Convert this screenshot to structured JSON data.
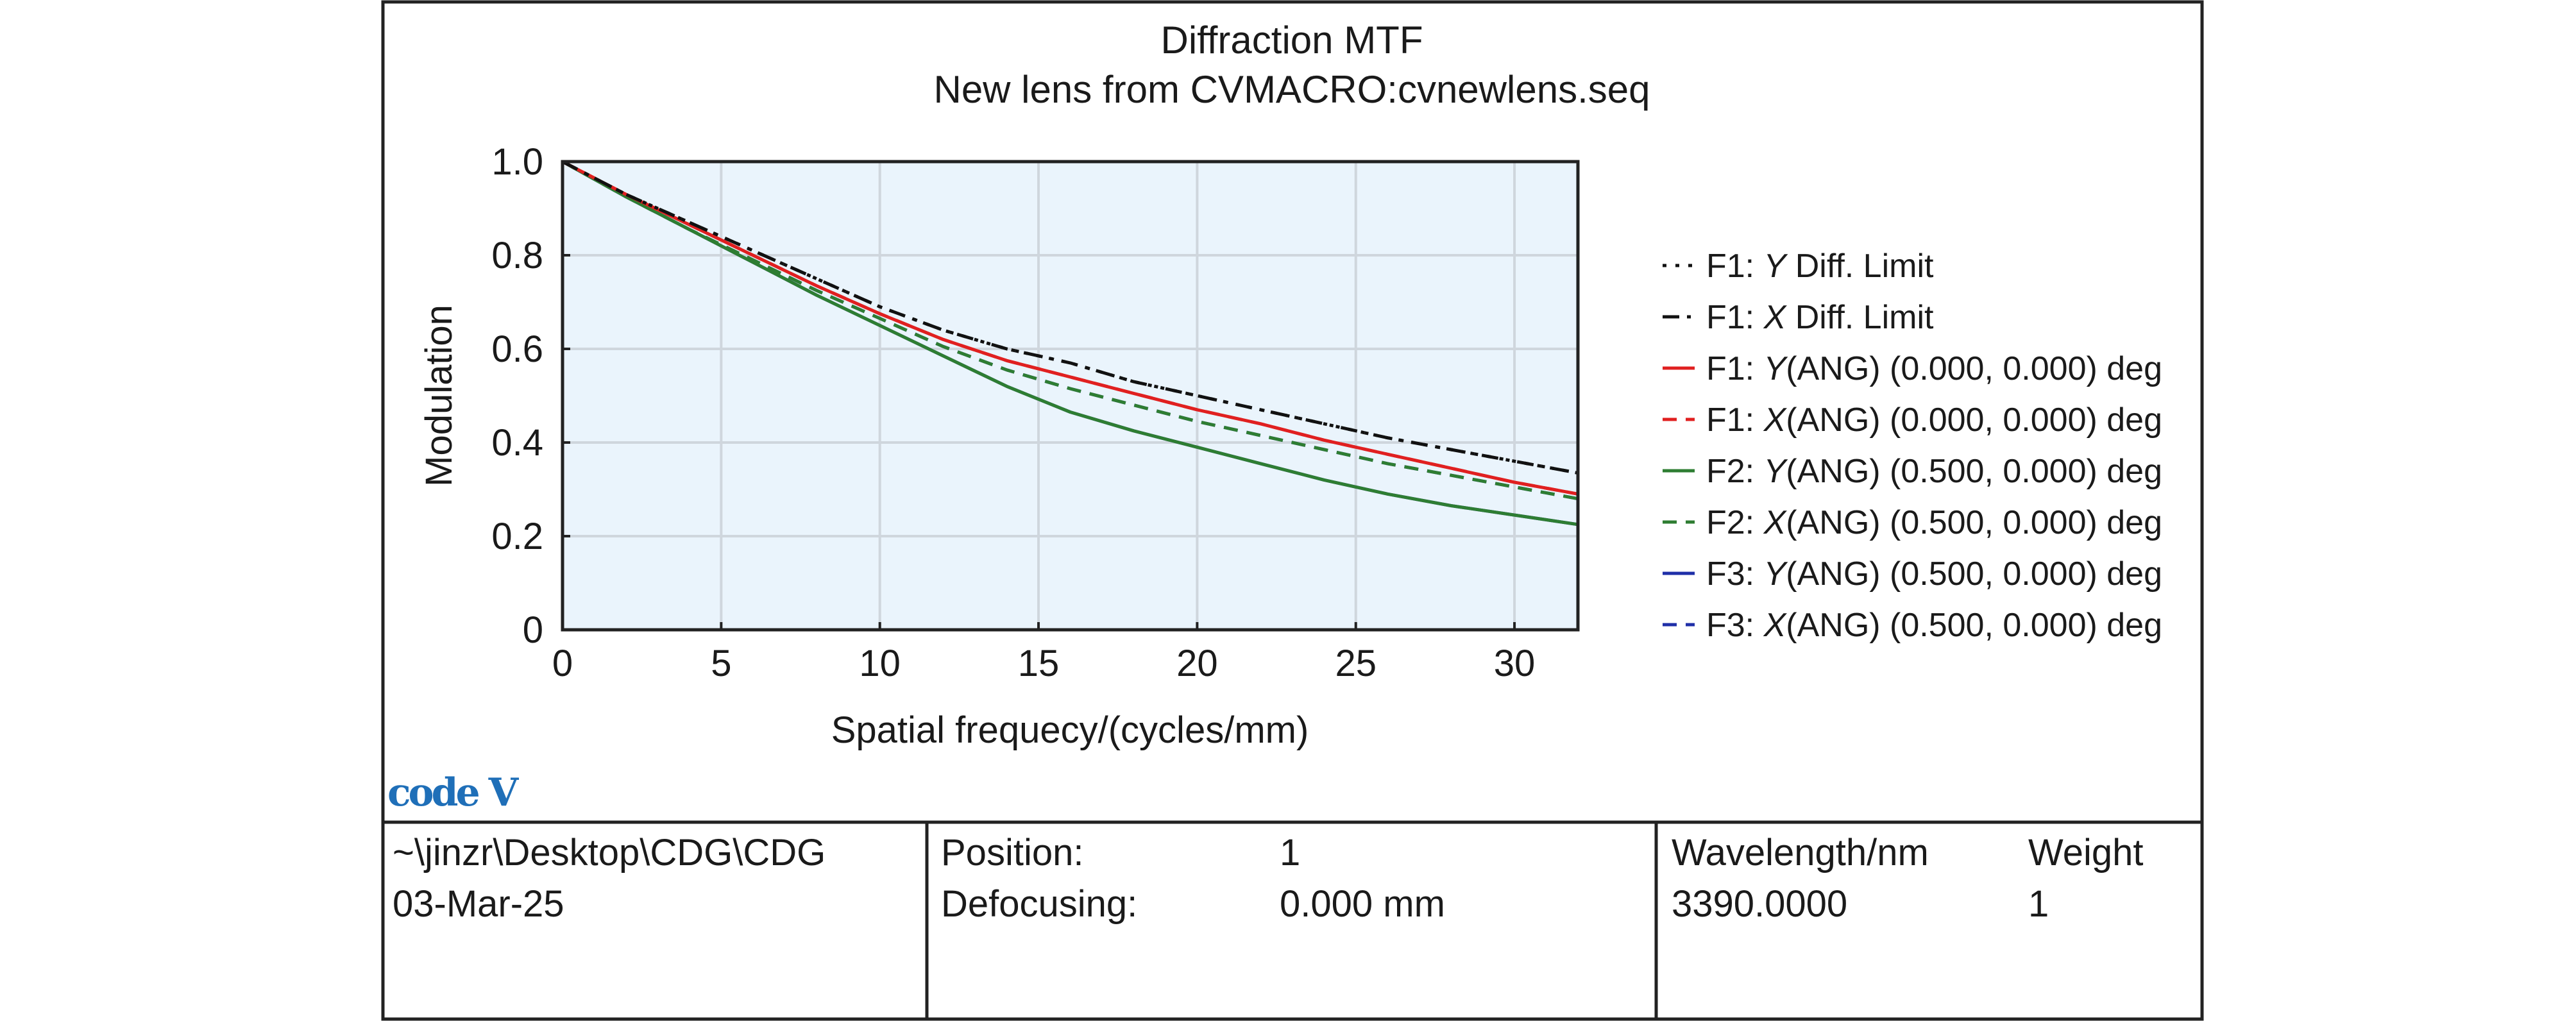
{
  "chart_data": {
    "type": "line",
    "title": "Diffraction MTF",
    "subtitle": "New lens from CVMACRO:cvnewlens.seq",
    "xlabel": "Spatial frequecy/(cycles/mm)",
    "ylabel": "Modulation",
    "xlim": [
      0,
      32
    ],
    "ylim": [
      0,
      1.0
    ],
    "x_ticks": [
      0,
      5,
      10,
      15,
      20,
      25,
      30
    ],
    "x_tick_labels": [
      "0",
      "5",
      "10",
      "15",
      "20",
      "25",
      "30"
    ],
    "y_ticks": [
      0,
      0.2,
      0.4,
      0.6,
      0.8,
      1.0
    ],
    "y_tick_labels": [
      "0",
      "0.2",
      "0.4",
      "0.6",
      "0.8",
      "1.0"
    ],
    "grid": true,
    "legend_position": "right",
    "x": [
      0,
      2,
      4,
      6,
      8,
      10,
      12,
      14,
      16,
      18,
      20,
      22,
      24,
      26,
      28,
      30,
      32
    ],
    "series": [
      {
        "name_prefix": "F1: ",
        "axis": "Y",
        "name_suffix": " Diff. Limit",
        "color": "#111111",
        "dash": "dot",
        "values": [
          1.0,
          0.93,
          0.87,
          0.81,
          0.75,
          0.69,
          0.64,
          0.6,
          0.57,
          0.53,
          0.5,
          0.47,
          0.44,
          0.41,
          0.385,
          0.36,
          0.335
        ]
      },
      {
        "name_prefix": "F1: ",
        "axis": "X",
        "name_suffix": " Diff. Limit",
        "color": "#111111",
        "dash": "dashdot",
        "values": [
          1.0,
          0.93,
          0.87,
          0.81,
          0.75,
          0.69,
          0.64,
          0.6,
          0.57,
          0.53,
          0.5,
          0.47,
          0.44,
          0.41,
          0.385,
          0.36,
          0.335
        ]
      },
      {
        "name_prefix": "F1: ",
        "axis": "Y",
        "name_suffix": "(ANG) (0.000, 0.000) deg",
        "color": "#e02020",
        "dash": "solid",
        "values": [
          1.0,
          0.93,
          0.865,
          0.8,
          0.735,
          0.675,
          0.62,
          0.575,
          0.54,
          0.505,
          0.47,
          0.44,
          0.405,
          0.375,
          0.345,
          0.315,
          0.29
        ]
      },
      {
        "name_prefix": "F1: ",
        "axis": "X",
        "name_suffix": "(ANG) (0.000, 0.000) deg",
        "color": "#e02020",
        "dash": "dash",
        "values": [
          1.0,
          0.93,
          0.865,
          0.8,
          0.735,
          0.675,
          0.62,
          0.575,
          0.54,
          0.505,
          0.47,
          0.44,
          0.405,
          0.375,
          0.345,
          0.315,
          0.29
        ]
      },
      {
        "name_prefix": "F2: ",
        "axis": "Y",
        "name_suffix": "(ANG) (0.500, 0.000) deg",
        "color": "#2e7d32",
        "dash": "solid",
        "values": [
          1.0,
          0.925,
          0.855,
          0.785,
          0.715,
          0.65,
          0.585,
          0.52,
          0.465,
          0.425,
          0.39,
          0.355,
          0.32,
          0.29,
          0.265,
          0.245,
          0.225
        ]
      },
      {
        "name_prefix": "F2: ",
        "axis": "X",
        "name_suffix": "(ANG) (0.500, 0.000) deg",
        "color": "#2e7d32",
        "dash": "dash",
        "values": [
          1.0,
          0.925,
          0.855,
          0.79,
          0.725,
          0.665,
          0.605,
          0.555,
          0.515,
          0.48,
          0.445,
          0.415,
          0.385,
          0.355,
          0.33,
          0.305,
          0.28
        ]
      },
      {
        "name_prefix": "F3: ",
        "axis": "Y",
        "name_suffix": "(ANG) (0.500, 0.000) deg",
        "color": "#1f2fa8",
        "dash": "solid",
        "values": [
          1.0,
          0.925,
          0.855,
          0.785,
          0.715,
          0.65,
          0.585,
          0.52,
          0.465,
          0.425,
          0.39,
          0.355,
          0.32,
          0.29,
          0.265,
          0.245,
          0.225
        ]
      },
      {
        "name_prefix": "F3: ",
        "axis": "X",
        "name_suffix": "(ANG) (0.500, 0.000) deg",
        "color": "#1f2fa8",
        "dash": "dash",
        "values": [
          1.0,
          0.925,
          0.855,
          0.79,
          0.725,
          0.665,
          0.605,
          0.555,
          0.515,
          0.48,
          0.445,
          0.415,
          0.385,
          0.355,
          0.33,
          0.305,
          0.28
        ]
      }
    ]
  },
  "logo": {
    "text": "code V"
  },
  "colors": {
    "plot_background": "#eaf4fc",
    "grid": "#cfd6dd",
    "frame": "#222222"
  },
  "footer": {
    "path": "~\\jinzr\\Desktop\\CDG\\CDG",
    "date": "03-Mar-25",
    "position_label": "Position:",
    "position_value": "1",
    "defocusing_label": "Defocusing:",
    "defocusing_value": "0.000 mm",
    "wavelength_label": "Wavelength/nm",
    "weight_label": "Weight",
    "wavelength_value": "3390.0000",
    "weight_value": "1"
  }
}
